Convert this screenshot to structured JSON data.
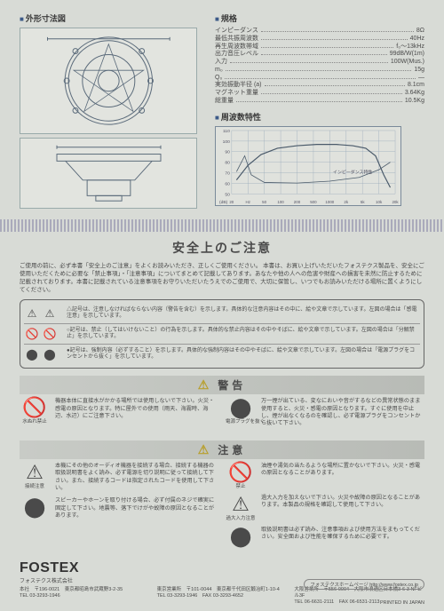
{
  "headings": {
    "dimensions": "外形寸法図",
    "specs": "規格",
    "freq": "周波数特性",
    "safety": "安全上のご注意",
    "warn": "警告",
    "caution": "注意"
  },
  "specs": [
    {
      "label": "インピーダンス",
      "value": "8Ω"
    },
    {
      "label": "最低共振周波数",
      "value": "40Hz"
    },
    {
      "label": "再生周波数帯域",
      "value": "f₀〜13kHz"
    },
    {
      "label": "出力音圧レベル",
      "value": "99dB/W(1m)"
    },
    {
      "label": "入力",
      "value": "100W(Mus.)"
    },
    {
      "label": "m₀",
      "value": "15g"
    },
    {
      "label": "Q₀",
      "value": "—"
    },
    {
      "label": "実効振動半径 (a)",
      "value": "8.1cm"
    },
    {
      "label": "マグネット重量",
      "value": "3.64Kg"
    },
    {
      "label": "総重量",
      "value": "10.5Kg"
    }
  ],
  "freqgraph": {
    "y_ticks": [
      50,
      60,
      70,
      80,
      90,
      100,
      110
    ],
    "y_unit": "(dB)",
    "x_ticks": [
      "20",
      "Hz",
      "50",
      "100",
      "200",
      "500",
      "1000",
      "2k",
      "5k",
      "10k",
      "20k"
    ],
    "note": "インピーダンス特性",
    "grid_color": "#9aaabb",
    "curve_color": "#4a5a6a",
    "spl_points": [
      [
        0.03,
        0.78
      ],
      [
        0.1,
        0.55
      ],
      [
        0.18,
        0.38
      ],
      [
        0.28,
        0.28
      ],
      [
        0.4,
        0.24
      ],
      [
        0.52,
        0.22
      ],
      [
        0.64,
        0.22
      ],
      [
        0.74,
        0.24
      ],
      [
        0.82,
        0.28
      ],
      [
        0.88,
        0.4
      ],
      [
        0.93,
        0.7
      ],
      [
        0.97,
        0.9
      ]
    ],
    "imp_points": [
      [
        0.03,
        0.65
      ],
      [
        0.08,
        0.4
      ],
      [
        0.12,
        0.7
      ],
      [
        0.2,
        0.82
      ],
      [
        0.4,
        0.83
      ],
      [
        0.6,
        0.8
      ],
      [
        0.78,
        0.74
      ],
      [
        0.9,
        0.62
      ],
      [
        0.97,
        0.5
      ]
    ]
  },
  "intro": "ご使用の前に、必ず本書「安全上のご注意」をよくお読みいただき、正しくご使用ください。\n本書は、お買い上げいただいたフォステクス製品を、安全にご使用いただくために必要な「禁止事項」・「注意事項」についてまとめて記載してあります。あなたや他の人への危害や財産への損害を未然に防止するために記載されております。本書に記載されている注意事項をお守りいただいたうえでのご使用で、大切に保管し、いつでもお読みいただける場所に置くようにしてください。",
  "sign_rows": [
    {
      "icons": [
        "⚠",
        "⚠"
      ],
      "text": "△記号は、注意しなければならない内容（警告を含む）を示します。具体的な注意内容はその中に、絵や文章で示しています。左図の場合は「感電注意」を示しています。"
    },
    {
      "icons": [
        "🚫",
        "🚫"
      ],
      "text": "○記号は、禁止（してはいけないこと）の行為を示します。具体的な禁止内容はその中やそばに、絵や文章で示しています。左図の場合は「分解禁止」を示しています。"
    },
    {
      "icons": [
        "⬤",
        "⬤"
      ],
      "text": "●記号は、強制内容（必ずすること）を示します。具体的な強制内容はその中やそばに、絵や文章で示しています。左図の場合は「電源プラグをコンセントから抜く」を示しています。"
    }
  ],
  "warn_items": {
    "left": [
      {
        "icon": "🚫",
        "cap": "水ぬれ禁止",
        "text": "機器本体に直接水がかかる場所では使用しないで下さい。火災・感電の原因となります。特に屋外での使用（雨天、海霧時、海辺、水辺）にご注意下さい。"
      }
    ],
    "right": [
      {
        "icon": "⬤",
        "cap": "電源プラグを抜く",
        "text": "万一煙が出ている、変なにおいや音がするなどの異常状態のまま使用すると、火災・感電の原因となります。すぐに使用を中止し、煙が出なくなるのを確認し、必ず電源プラグをコンセントから抜いて下さい。"
      }
    ]
  },
  "caution_items": {
    "left": [
      {
        "icon": "⚠",
        "cap": "接続注意",
        "text": "本機にその他のオーディオ機器を接続する場合、接続する機器の取扱説明書をよく読み、必ず電源を切り説明に従って接続して下さい。また、接続するコードは指定されたコードを使用して下さい。"
      },
      {
        "icon": "⬤",
        "cap": "",
        "text": "スピーカーやホーンを取り付ける場合、必ず付属のネジで確実に固定して下さい。地震等、落下でけがや故障の原因となることがあります。"
      }
    ],
    "right": [
      {
        "icon": "🚫",
        "cap": "禁止",
        "text": "油煙や湯気の当たるような場所に置かないで下さい。火災・感電の原因となることがあります。"
      },
      {
        "icon": "⚠",
        "cap": "過大入力注意",
        "text": "過大入力を加えないで下さい。火災や故障の原因となることがあります。本製品の規格を確認して使用して下さい。"
      },
      {
        "icon": "⬤",
        "cap": "",
        "text": "取扱説明書は必ず読み、注意事項および使用方法をまもってください。安全面および性能を確保するために必要です。"
      }
    ]
  },
  "footer": {
    "logo": "FOSTEX",
    "logosub": "フォステクス株式会社",
    "addresses": [
      {
        "name": "本社",
        "zip": "〒196-0021",
        "addr": "東京都昭島市武蔵野3-2-35",
        "tel": "TEL 03-3293-1946"
      },
      {
        "name": "東京営業所",
        "zip": "〒101-0044",
        "addr": "東京都千代田区鍛冶町1-10-4",
        "tel": "TEL 03-3293-1946",
        "fax": "FAX 03-3293-4652"
      },
      {
        "name": "大阪営業所",
        "zip": "〒556-0004",
        "addr": "大阪市浪速区日本橋3-6-3 NFビル3F",
        "tel": "TEL 06-6631-2111",
        "fax": "FAX 06-6531-2113"
      }
    ],
    "homepage": "フォステクスホームページ http://www.fostex.co.jp",
    "printed": "PRINTED IN JAPAN"
  },
  "colors": {
    "bg": "#d8dbd6",
    "accent": "#3c5a88",
    "rule": "#888",
    "warn": "#b8a030"
  }
}
